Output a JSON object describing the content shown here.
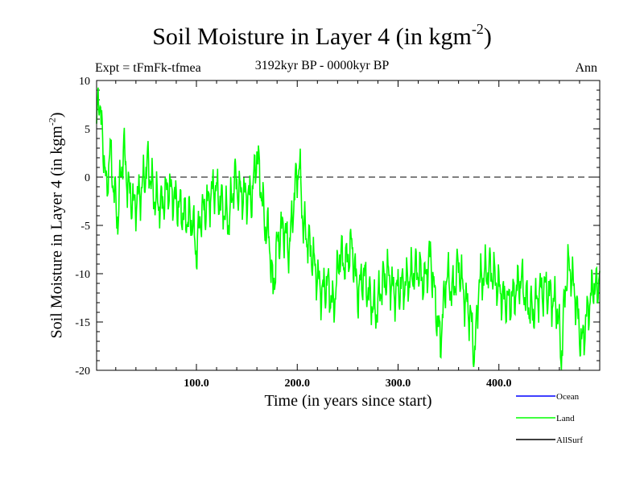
{
  "chart_data": {
    "type": "line",
    "title": "Soil Moisture in Layer 4 (in kgm",
    "title_sup": "-2",
    "title_close": ")",
    "subtitle_left": "Expt = tFmFk-tfmea",
    "subtitle_center": "3192kyr BP - 0000kyr BP",
    "subtitle_right": "Ann",
    "xlabel": "Time (in years since start)",
    "ylabel": "Soil Moisture in Layer 4 (in kgm",
    "ylabel_sup": "-2",
    "ylabel_close": ")",
    "xlim": [
      1,
      500
    ],
    "ylim": [
      -20,
      10
    ],
    "x_ticks": [
      100,
      200,
      300,
      400
    ],
    "x_tick_labels": [
      "100.0",
      "200.0",
      "300.0",
      "400.0"
    ],
    "y_ticks": [
      10,
      5,
      0,
      -5,
      -10,
      -15,
      -20
    ],
    "y_tick_labels": [
      "10",
      "5",
      "0",
      "-5",
      "-10",
      "-15",
      "-20"
    ],
    "zero_line": 0,
    "legend": [
      {
        "name": "Ocean",
        "color": "#0000ff"
      },
      {
        "name": "Land",
        "color": "#00ff00"
      },
      {
        "name": "AllSurf",
        "color": "#000000"
      }
    ],
    "series": [
      {
        "name": "Land",
        "color": "#00ff00",
        "keypoints": [
          [
            1,
            5
          ],
          [
            3,
            9.5
          ],
          [
            5,
            6
          ],
          [
            8,
            3
          ],
          [
            11,
            -2
          ],
          [
            14,
            3
          ],
          [
            18,
            -1
          ],
          [
            22,
            -4.5
          ],
          [
            25,
            0.5
          ],
          [
            28,
            3
          ],
          [
            32,
            -1
          ],
          [
            38,
            -3
          ],
          [
            45,
            -1.5
          ],
          [
            52,
            1.5
          ],
          [
            58,
            -2
          ],
          [
            65,
            -3
          ],
          [
            72,
            -1
          ],
          [
            80,
            -2.5
          ],
          [
            88,
            -4
          ],
          [
            96,
            -4.5
          ],
          [
            100,
            -7.8
          ],
          [
            104,
            -4
          ],
          [
            110,
            -3
          ],
          [
            118,
            -1
          ],
          [
            126,
            -3
          ],
          [
            132,
            -4.5
          ],
          [
            138,
            0
          ],
          [
            142,
            -1.5
          ],
          [
            148,
            -2
          ],
          [
            155,
            -2
          ],
          [
            160,
            2.5
          ],
          [
            164,
            -1
          ],
          [
            168,
            -5
          ],
          [
            172,
            -6
          ],
          [
            176,
            -12
          ],
          [
            180,
            -7
          ],
          [
            186,
            -5
          ],
          [
            192,
            -7.5
          ],
          [
            198,
            -1
          ],
          [
            202,
            1.5
          ],
          [
            206,
            -5
          ],
          [
            212,
            -7
          ],
          [
            218,
            -9.5
          ],
          [
            224,
            -12
          ],
          [
            230,
            -11
          ],
          [
            236,
            -13.5
          ],
          [
            242,
            -8
          ],
          [
            248,
            -9
          ],
          [
            254,
            -7
          ],
          [
            260,
            -12
          ],
          [
            266,
            -10
          ],
          [
            272,
            -12.5
          ],
          [
            278,
            -14
          ],
          [
            284,
            -11
          ],
          [
            290,
            -10
          ],
          [
            296,
            -12
          ],
          [
            302,
            -11.5
          ],
          [
            308,
            -11
          ],
          [
            314,
            -10
          ],
          [
            320,
            -9.5
          ],
          [
            326,
            -11
          ],
          [
            332,
            -8
          ],
          [
            338,
            -14
          ],
          [
            342,
            -17
          ],
          [
            348,
            -10
          ],
          [
            354,
            -12
          ],
          [
            360,
            -9
          ],
          [
            366,
            -12.5
          ],
          [
            372,
            -14.5
          ],
          [
            376,
            -18.7
          ],
          [
            380,
            -11
          ],
          [
            386,
            -10
          ],
          [
            392,
            -9.5
          ],
          [
            398,
            -11
          ],
          [
            404,
            -12.5
          ],
          [
            410,
            -13
          ],
          [
            416,
            -12
          ],
          [
            422,
            -10.5
          ],
          [
            428,
            -13
          ],
          [
            434,
            -14
          ],
          [
            440,
            -12
          ],
          [
            446,
            -11.5
          ],
          [
            452,
            -12.5
          ],
          [
            458,
            -13.5
          ],
          [
            462,
            -18.7
          ],
          [
            466,
            -11
          ],
          [
            470,
            -9
          ],
          [
            476,
            -12.5
          ],
          [
            482,
            -17.5
          ],
          [
            488,
            -14
          ],
          [
            494,
            -11
          ],
          [
            498,
            -12
          ],
          [
            500,
            -8.5
          ]
        ]
      }
    ]
  }
}
